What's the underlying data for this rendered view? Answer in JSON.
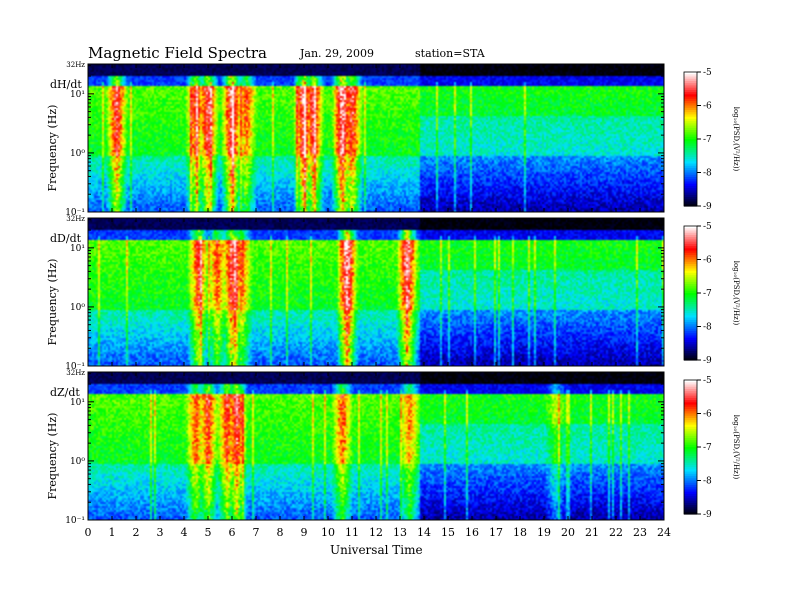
{
  "header": {
    "title": "Magnetic  Field  Spectra",
    "date": "Jan. 29, 2009",
    "station": "station=STA"
  },
  "chart_data": {
    "type": "heatmap",
    "xlabel": "Universal Time",
    "x_ticks": [
      "0",
      "1",
      "2",
      "3",
      "4",
      "5",
      "6",
      "7",
      "8",
      "9",
      "10",
      "11",
      "12",
      "13",
      "14",
      "15",
      "16",
      "17",
      "18",
      "19",
      "20",
      "21",
      "22",
      "23",
      "24"
    ],
    "xlim": [
      0,
      24
    ],
    "ylabel": "Frequency  (Hz)",
    "y_scale": "log",
    "ylim": [
      0.1,
      32
    ],
    "y_tick_labels": [
      "10⁻¹",
      "10⁰",
      "10¹",
      "32Hz"
    ],
    "colorbar": {
      "label": "log₁₀(PSD,(V²/Hz))",
      "ticks": [
        "-5",
        "-6",
        "-7",
        "-8",
        "-9"
      ],
      "range": [
        -9,
        -5
      ],
      "colormap": [
        "#000000",
        "#0000ff",
        "#00e0ff",
        "#00ff00",
        "#ffff00",
        "#ff0000",
        "#ffffff"
      ]
    },
    "panels": [
      {
        "name": "dH/dt",
        "bursts": [
          [
            1.2,
            0.8
          ],
          [
            4.5,
            0.7
          ],
          [
            5.0,
            0.8
          ],
          [
            6.0,
            0.9
          ],
          [
            6.6,
            0.6
          ],
          [
            9.0,
            0.9
          ],
          [
            9.4,
            0.8
          ],
          [
            10.6,
            1.0
          ],
          [
            11.0,
            0.8
          ]
        ],
        "quiet_start": 13.8,
        "quiet_end": 24
      },
      {
        "name": "dD/dt",
        "bursts": [
          [
            4.6,
            0.7
          ],
          [
            5.4,
            0.6
          ],
          [
            6.0,
            0.8
          ],
          [
            6.4,
            0.6
          ],
          [
            10.8,
            1.0
          ],
          [
            13.3,
            0.9
          ]
        ],
        "quiet_start": 13.8,
        "quiet_end": 24
      },
      {
        "name": "dZ/dt",
        "bursts": [
          [
            4.5,
            0.6
          ],
          [
            5.0,
            0.7
          ],
          [
            5.8,
            0.7
          ],
          [
            6.2,
            0.8
          ],
          [
            10.6,
            0.6
          ],
          [
            13.4,
            0.5
          ],
          [
            19.5,
            0.3
          ]
        ],
        "quiet_start": 13.8,
        "quiet_end": 24
      }
    ]
  }
}
